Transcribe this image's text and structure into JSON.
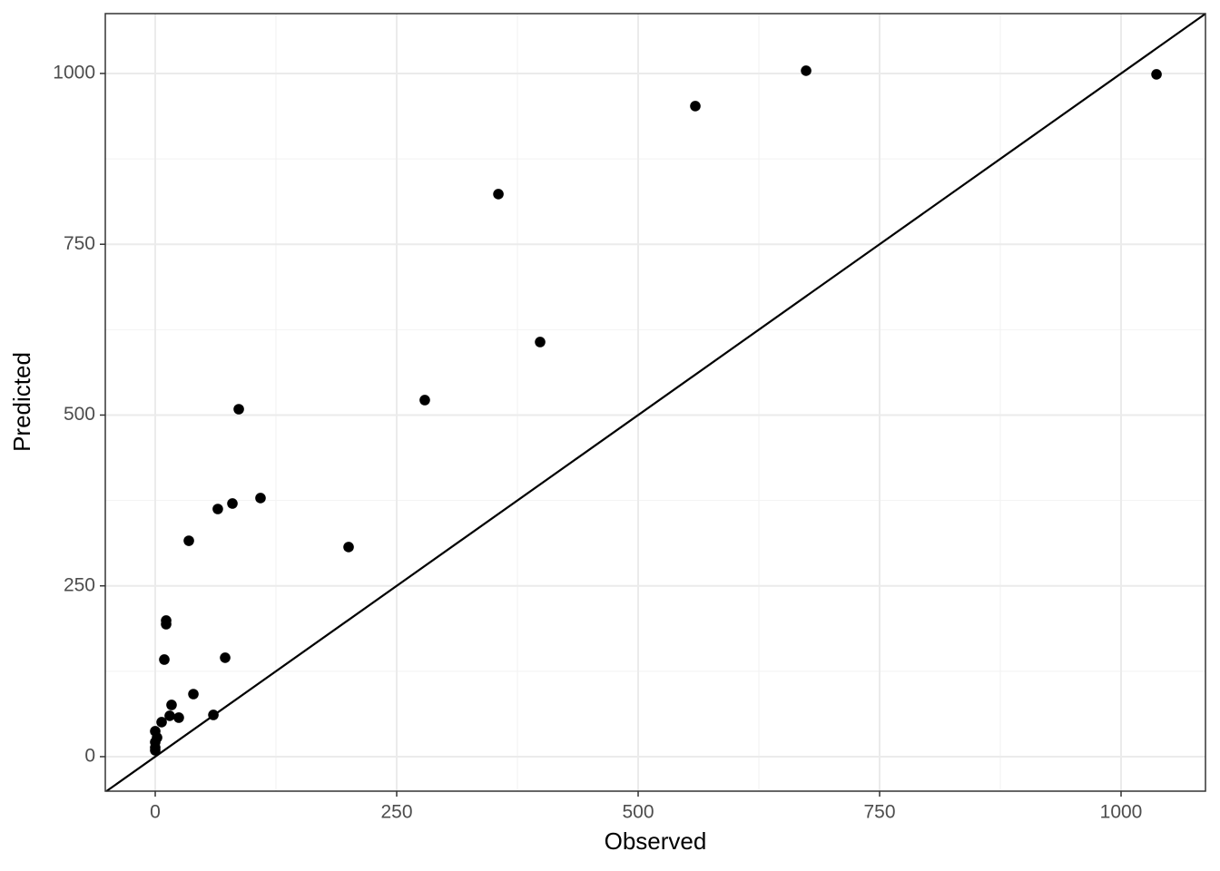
{
  "chart_data": {
    "type": "scatter",
    "xlabel": "Observed",
    "ylabel": "Predicted",
    "x": [
      1036.7,
      673.9,
      559.2,
      355.3,
      398.5,
      279.1,
      86.5,
      109,
      79.9,
      64.8,
      34.8,
      200.2,
      11.3,
      11.3,
      9.4,
      72.4,
      39.5,
      16.9,
      15,
      24.4,
      60.2,
      6.6,
      0,
      1.9,
      0,
      0,
      0
    ],
    "values": [
      998.7,
      1004,
      952.2,
      823.4,
      606.9,
      521.9,
      508.6,
      378.5,
      370.5,
      362.5,
      316,
      306.8,
      199.2,
      193.9,
      142.1,
      144.8,
      91.6,
      75.7,
      59.8,
      57.1,
      61.1,
      50.5,
      37.2,
      27.9,
      21.2,
      13.3,
      9.3
    ],
    "color": "#000000",
    "xlim": [
      -51.7,
      1087.4
    ],
    "ylim": [
      -50.5,
      1087.6
    ],
    "xticks": [
      0,
      250,
      500,
      750,
      1000
    ],
    "yticks": [
      0,
      250,
      500,
      750,
      1000
    ],
    "grid": true,
    "identity_line": true
  }
}
